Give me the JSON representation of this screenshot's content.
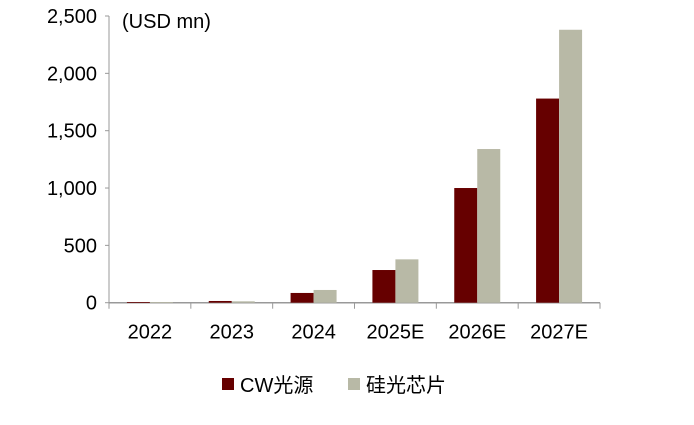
{
  "chart_data": {
    "type": "bar",
    "title": "",
    "unit_label": "(USD mn)",
    "xlabel": "",
    "ylabel": "",
    "categories": [
      "2022",
      "2023",
      "2024",
      "2025E",
      "2026E",
      "2027E"
    ],
    "series": [
      {
        "name": "CW光源",
        "color": "#660000",
        "values": [
          5,
          15,
          85,
          285,
          1000,
          1780
        ]
      },
      {
        "name": "硅光芯片",
        "color": "#B8B9A6",
        "values": [
          5,
          12,
          111,
          378,
          1340,
          2380
        ]
      }
    ],
    "ylim": [
      0,
      2500
    ],
    "yticks": [
      0,
      500,
      1000,
      1500,
      2000,
      2500
    ],
    "ytick_labels": [
      "0",
      "500",
      "1,000",
      "1,500",
      "2,000",
      "2,500"
    ],
    "grid": false,
    "legend_position": "bottom"
  }
}
